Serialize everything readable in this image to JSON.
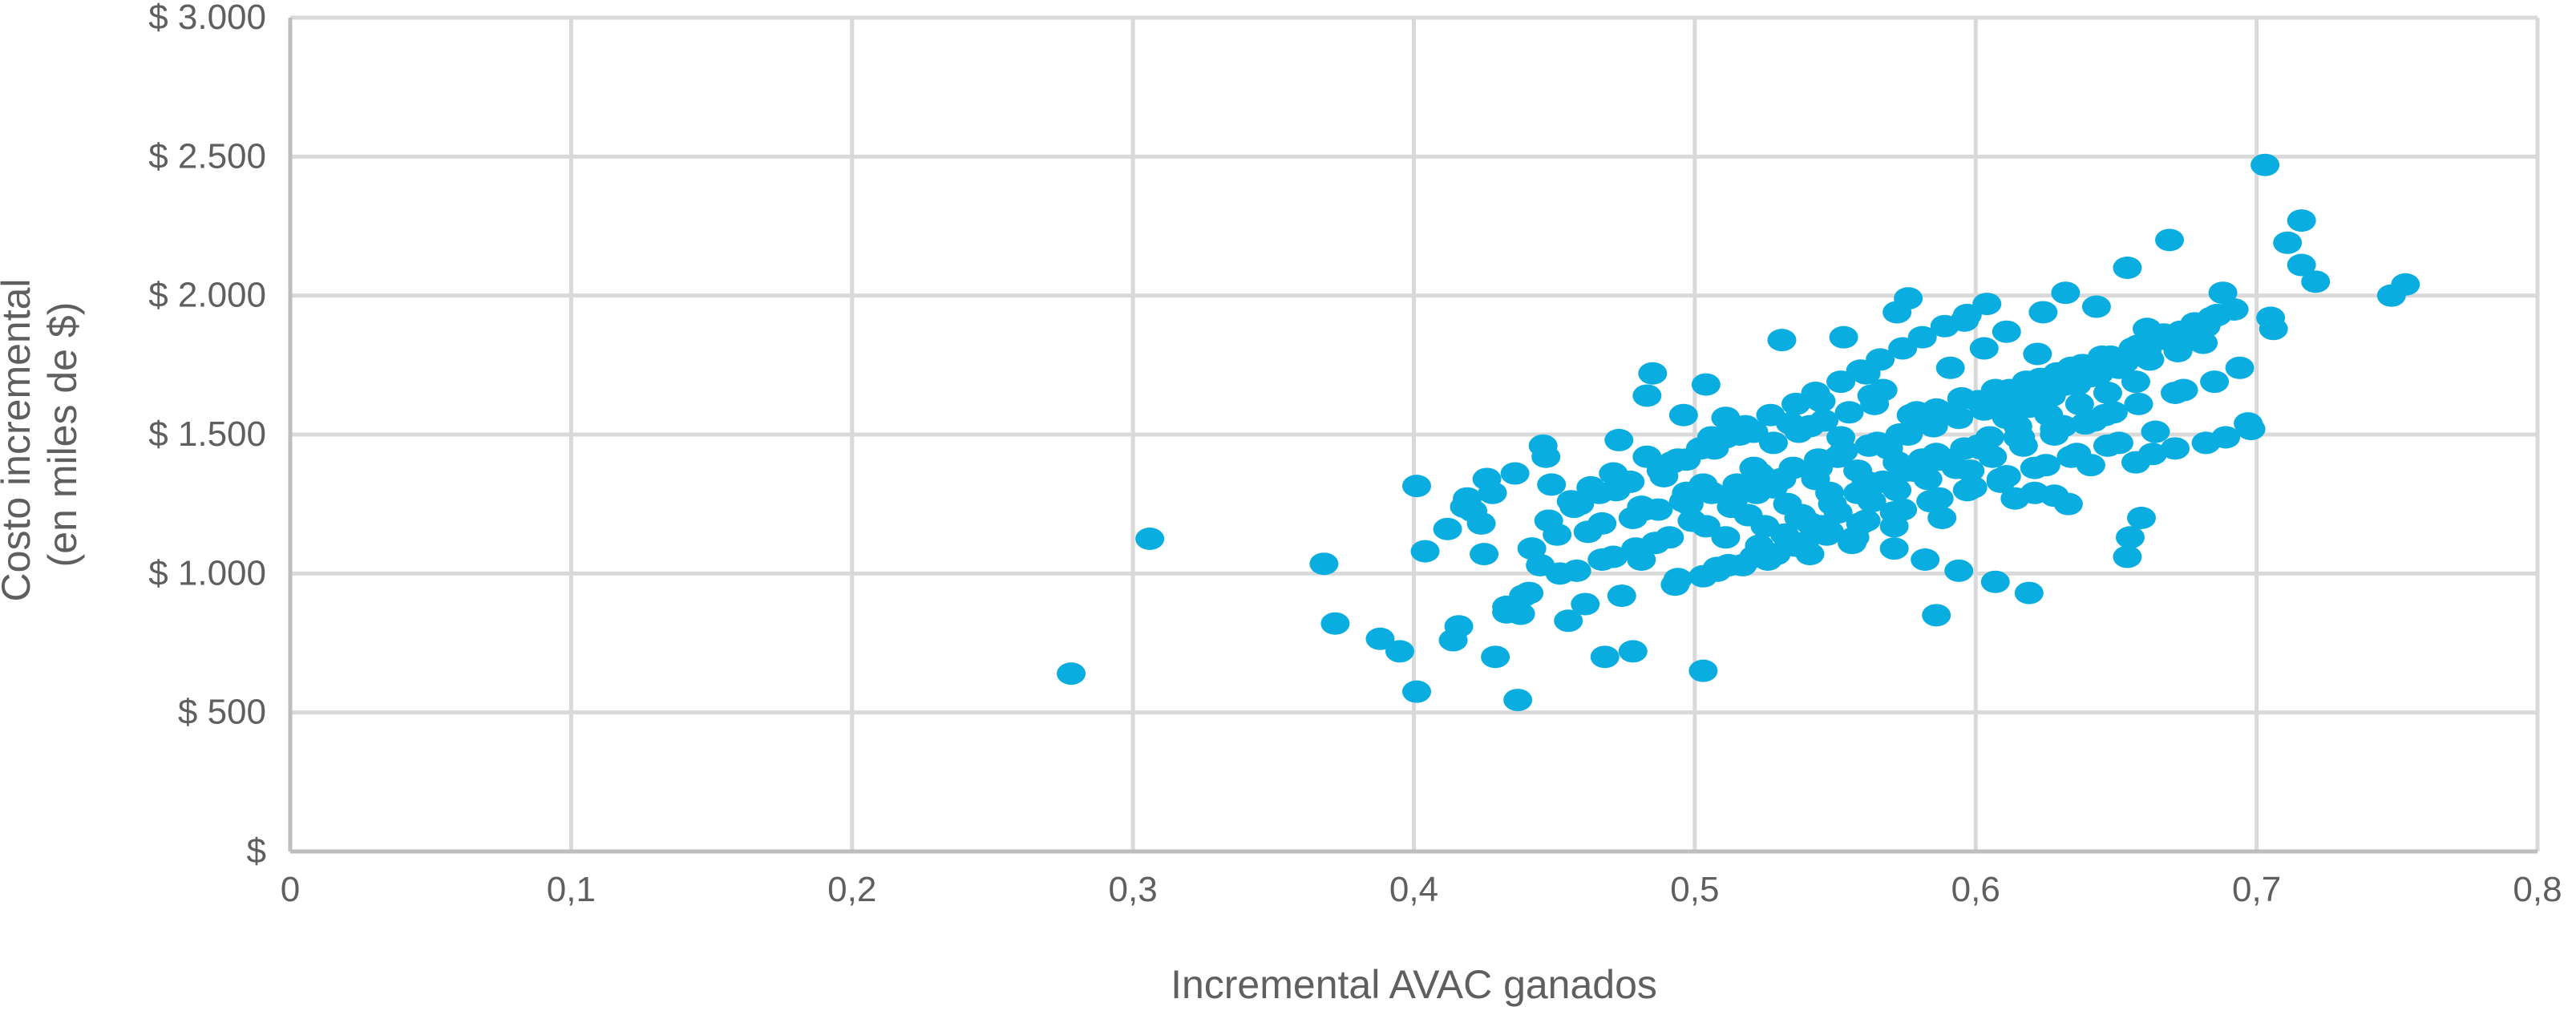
{
  "chart_data": {
    "type": "scatter",
    "xlabel": "Incremental AVAC ganados",
    "ylabel_lines": [
      "Costo incremental",
      "(en miles de $)"
    ],
    "xlim": [
      0,
      0.8
    ],
    "ylim": [
      0,
      3000
    ],
    "x_ticks": [
      0,
      0.1,
      0.2,
      0.3,
      0.4,
      0.5,
      0.6,
      0.7,
      0.8
    ],
    "x_tick_labels": [
      "0",
      "0,1",
      "0,2",
      "0,3",
      "0,4",
      "0,5",
      "0,6",
      "0,7",
      "0,8"
    ],
    "y_ticks": [
      0,
      500,
      1000,
      1500,
      2000,
      2500,
      3000
    ],
    "y_tick_labels": [
      "$",
      "$ 500",
      "$ 1.000",
      "$ 1.500",
      "$ 2.000",
      "$ 2.500",
      "$ 3.000"
    ],
    "grid": true,
    "point_color": "#09ade0",
    "grid_color": "#d9d9d9",
    "axis_color": "#bdbdbd",
    "text_color": "#5f5f5f",
    "points_x": [
      0.278,
      0.306,
      0.368,
      0.372,
      0.388,
      0.395,
      0.401,
      0.404,
      0.401,
      0.416,
      0.414,
      0.419,
      0.421,
      0.425,
      0.429,
      0.433,
      0.437,
      0.446,
      0.449,
      0.438,
      0.439,
      0.445,
      0.452,
      0.456,
      0.468,
      0.478,
      0.483,
      0.485,
      0.481,
      0.496,
      0.503,
      0.504,
      0.512,
      0.521,
      0.531,
      0.537,
      0.553,
      0.561,
      0.572,
      0.576,
      0.586,
      0.596,
      0.606,
      0.611,
      0.624,
      0.632,
      0.643,
      0.654,
      0.661,
      0.669,
      0.676,
      0.688,
      0.694,
      0.703,
      0.711,
      0.716,
      0.716,
      0.721,
      0.705,
      0.697,
      0.689,
      0.674,
      0.657,
      0.654,
      0.748,
      0.753,
      0.706,
      0.671,
      0.659,
      0.655,
      0.426,
      0.447,
      0.463,
      0.473,
      0.497,
      0.506,
      0.511,
      0.521,
      0.534,
      0.545,
      0.563,
      0.567,
      0.579,
      0.591,
      0.603,
      0.622,
      0.412,
      0.418,
      0.424,
      0.428,
      0.436,
      0.442,
      0.451,
      0.459,
      0.467,
      0.472,
      0.481,
      0.489,
      0.497,
      0.503,
      0.514,
      0.523,
      0.433,
      0.441,
      0.455,
      0.461,
      0.474,
      0.493,
      0.508,
      0.526,
      0.541,
      0.556,
      0.571,
      0.588,
      0.614,
      0.628,
      0.641,
      0.663,
      0.682,
      0.698,
      0.462,
      0.471,
      0.486,
      0.499,
      0.513,
      0.522,
      0.531,
      0.544,
      0.551,
      0.562,
      0.573,
      0.584,
      0.592,
      0.601,
      0.612,
      0.623,
      0.634,
      0.645,
      0.658,
      0.667,
      0.678,
      0.686,
      0.448,
      0.457,
      0.466,
      0.477,
      0.488,
      0.494,
      0.502,
      0.511,
      0.518,
      0.527,
      0.536,
      0.543,
      0.552,
      0.559,
      0.566,
      0.574,
      0.581,
      0.589,
      0.597,
      0.604,
      0.611,
      0.619,
      0.627,
      0.636,
      0.644,
      0.653,
      0.661,
      0.669,
      0.677,
      0.684,
      0.692,
      0.471,
      0.483,
      0.492,
      0.507,
      0.516,
      0.528,
      0.537,
      0.546,
      0.555,
      0.564,
      0.577,
      0.586,
      0.595,
      0.607,
      0.618,
      0.629,
      0.638,
      0.648,
      0.656,
      0.664,
      0.673,
      0.682,
      0.458,
      0.467,
      0.479,
      0.491,
      0.504,
      0.519,
      0.533,
      0.548,
      0.561,
      0.575,
      0.589,
      0.602,
      0.616,
      0.631,
      0.646,
      0.658,
      0.671,
      0.685,
      0.478,
      0.487,
      0.496,
      0.506,
      0.515,
      0.524,
      0.535,
      0.544,
      0.553,
      0.565,
      0.576,
      0.585,
      0.594,
      0.603,
      0.613,
      0.622,
      0.632,
      0.641,
      0.651,
      0.662,
      0.672,
      0.681,
      0.511,
      0.525,
      0.538,
      0.549,
      0.558,
      0.567,
      0.578,
      0.587,
      0.596,
      0.605,
      0.615,
      0.626,
      0.637,
      0.647,
      0.657,
      0.523,
      0.532,
      0.541,
      0.551,
      0.563,
      0.572,
      0.583,
      0.593,
      0.606,
      0.617,
      0.628,
      0.639,
      0.649,
      0.541,
      0.552,
      0.569,
      0.581,
      0.598,
      0.609,
      0.621,
      0.633,
      0.545,
      0.557,
      0.571,
      0.582,
      0.594,
      0.607,
      0.619,
      0.503,
      0.517,
      0.529,
      0.539,
      0.548,
      0.561,
      0.574,
      0.587,
      0.599,
      0.611,
      0.625,
      0.636,
      0.651,
      0.664,
      0.494,
      0.508,
      0.521,
      0.536,
      0.547,
      0.559,
      0.571,
      0.584,
      0.597,
      0.609,
      0.621,
      0.634,
      0.647,
      0.482,
      0.498,
      0.513,
      0.528,
      0.543,
      0.558,
      0.572,
      0.586,
      0.601,
      0.615,
      0.628,
      0.642
    ],
    "points_y": [
      640,
      1125,
      1035,
      820,
      765,
      720,
      575,
      1080,
      1315,
      810,
      760,
      1270,
      1225,
      1070,
      700,
      880,
      545,
      1460,
      1320,
      855,
      920,
      1030,
      1000,
      1260,
      700,
      720,
      1640,
      1720,
      1050,
      1570,
      650,
      1680,
      1030,
      1380,
      1840,
      1200,
      1850,
      1720,
      1940,
      1990,
      850,
      1910,
      1620,
      1870,
      1940,
      2010,
      1960,
      2100,
      1880,
      2200,
      1840,
      2010,
      1740,
      2470,
      2190,
      2110,
      2270,
      2050,
      1920,
      1540,
      1490,
      1660,
      1400,
      1060,
      2000,
      2040,
      1880,
      1450,
      1200,
      1130,
      1340,
      1420,
      1310,
      1480,
      1410,
      1490,
      1560,
      1510,
      1540,
      1620,
      1640,
      1660,
      1580,
      1740,
      1810,
      1790,
      1160,
      1240,
      1180,
      1290,
      1360,
      1090,
      1140,
      1250,
      1180,
      1300,
      1240,
      1350,
      1290,
      1320,
      1270,
      1360,
      860,
      930,
      830,
      890,
      920,
      960,
      1010,
      1050,
      1070,
      1110,
      1170,
      1200,
      1270,
      1280,
      1390,
      1430,
      1470,
      1520,
      1150,
      1060,
      1110,
      1190,
      1240,
      1290,
      1340,
      1380,
      1420,
      1460,
      1500,
      1540,
      1580,
      1620,
      1660,
      1700,
      1740,
      1780,
      1820,
      1860,
      1900,
      1930,
      1190,
      1240,
      1290,
      1330,
      1370,
      1410,
      1450,
      1490,
      1530,
      1570,
      1610,
      1650,
      1690,
      1730,
      1770,
      1810,
      1850,
      1890,
      1930,
      1970,
      1560,
      1600,
      1640,
      1680,
      1720,
      1760,
      1800,
      1840,
      1880,
      1920,
      1950,
      1360,
      1420,
      1400,
      1450,
      1500,
      1470,
      1510,
      1550,
      1580,
      1610,
      1570,
      1590,
      1630,
      1660,
      1690,
      1720,
      1750,
      1780,
      1810,
      1840,
      1870,
      1890,
      1010,
      1050,
      1090,
      1130,
      1170,
      1210,
      1250,
      1290,
      1330,
      1370,
      1410,
      1450,
      1490,
      1530,
      1570,
      1610,
      1650,
      1690,
      1200,
      1230,
      1260,
      1290,
      1320,
      1350,
      1380,
      1410,
      1440,
      1470,
      1500,
      1530,
      1560,
      1590,
      1620,
      1650,
      1680,
      1710,
      1740,
      1770,
      1800,
      1830,
      1130,
      1170,
      1210,
      1250,
      1290,
      1330,
      1370,
      1410,
      1450,
      1490,
      1530,
      1570,
      1610,
      1650,
      1690,
      1100,
      1140,
      1180,
      1220,
      1260,
      1300,
      1340,
      1380,
      1420,
      1460,
      1500,
      1540,
      1580,
      1530,
      1490,
      1450,
      1410,
      1370,
      1330,
      1290,
      1250,
      1170,
      1130,
      1090,
      1050,
      1010,
      970,
      930,
      990,
      1030,
      1070,
      1110,
      1150,
      1190,
      1230,
      1270,
      1310,
      1350,
      1390,
      1430,
      1470,
      1510,
      980,
      1020,
      1060,
      1100,
      1140,
      1180,
      1220,
      1260,
      1300,
      1340,
      1380,
      1420,
      1460,
      1230,
      1250,
      1280,
      1310,
      1340,
      1370,
      1400,
      1430,
      1460,
      1490,
      1520,
      1550
    ]
  }
}
